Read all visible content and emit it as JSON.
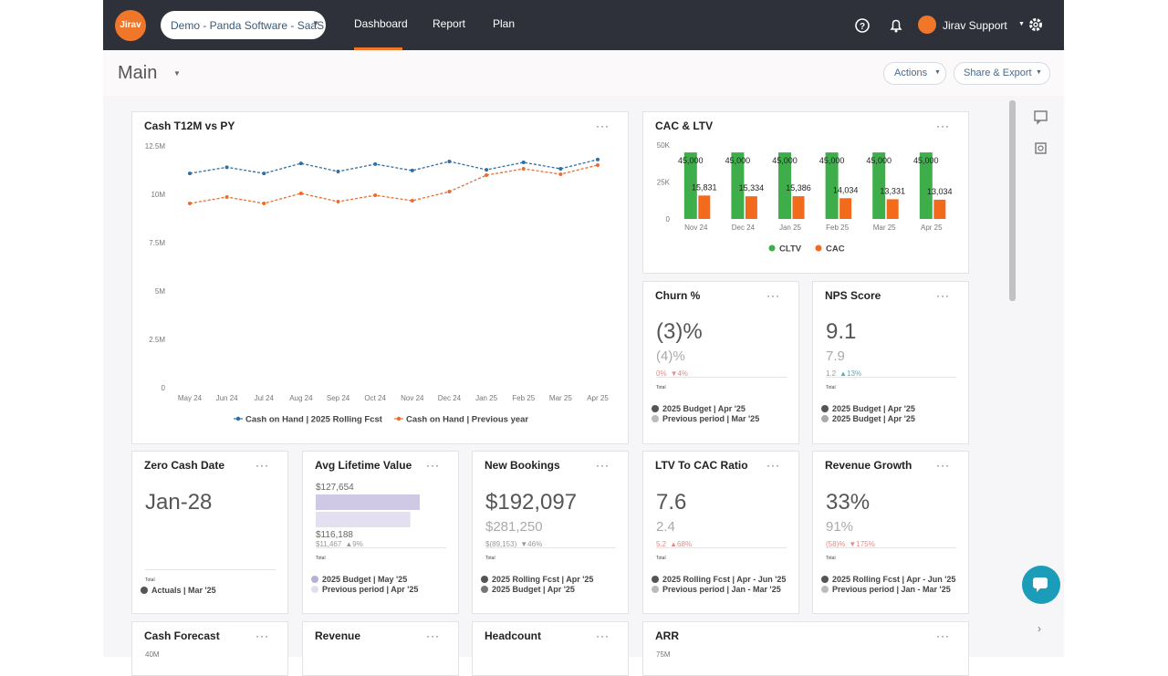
{
  "nav": {
    "logo": "Jirav",
    "workspace": "Demo - Panda Software - SaaS",
    "tabs": [
      "Dashboard",
      "Report",
      "Plan"
    ],
    "user": "Jirav Support"
  },
  "header": {
    "title": "Main",
    "buttons": [
      "Actions",
      "Share & Export"
    ]
  },
  "cash_chart": {
    "type": "line",
    "title": "Cash T12M vs PY",
    "categories": [
      "May 24",
      "Jun 24",
      "Jul 24",
      "Aug 24",
      "Sep 24",
      "Oct 24",
      "Nov 24",
      "Dec 24",
      "Jan 25",
      "Feb 25",
      "Mar 25",
      "Apr 25"
    ],
    "series": [
      {
        "name": "Cash on Hand | 2025 Rolling Fcst",
        "color": "#2f6ea5",
        "values": [
          11080000,
          11400000,
          11080000,
          11600000,
          11180000,
          11560000,
          11230000,
          11700000,
          11270000,
          11650000,
          11320000,
          11800000
        ]
      },
      {
        "name": "Cash on Hand | Previous year",
        "color": "#ef6b2c",
        "values": [
          9530000,
          9860000,
          9530000,
          10050000,
          9620000,
          9950000,
          9670000,
          10140000,
          10990000,
          11320000,
          11040000,
          11510000
        ]
      }
    ],
    "ylim": [
      0,
      12500000
    ],
    "yticks": [
      0,
      {
        "value": 2500000,
        "label": "2.5M"
      },
      {
        "value": 5000000,
        "label": "5M"
      },
      {
        "value": 7500000,
        "label": "7.5M"
      },
      {
        "value": 10000000,
        "label": "10M"
      },
      {
        "value": 12500000,
        "label": "12.5M"
      }
    ],
    "grid": false
  },
  "cac_chart": {
    "type": "bar",
    "title": "CAC & LTV",
    "categories": [
      "Nov 24",
      "Dec 24",
      "Jan 25",
      "Feb 25",
      "Mar 25",
      "Apr 25"
    ],
    "series": [
      {
        "name": "CLTV",
        "color": "#3dae4a",
        "values": [
          45000,
          45000,
          45000,
          45000,
          45000,
          45000
        ],
        "value_labels": [
          "45,000",
          "45,000",
          "45,000",
          "45,000",
          "45,000",
          "45,000"
        ]
      },
      {
        "name": "CAC",
        "color": "#f26b1d",
        "values": [
          15831,
          15334,
          15386,
          14034,
          13331,
          13034
        ],
        "value_labels": [
          "15,831",
          "15,334",
          "15,386",
          "14,034",
          "13,331",
          "13,034"
        ]
      }
    ],
    "ylim": [
      0,
      50000
    ],
    "yticks": [
      0,
      {
        "value": 25000,
        "label": "25K"
      },
      {
        "value": 50000,
        "label": "50K"
      }
    ]
  },
  "cards": [
    {
      "title": "Churn %",
      "value": "(3)%",
      "compare": "(4)%",
      "deltas": [
        "0%",
        "▼4%"
      ],
      "total": "Total",
      "legend": [
        "2025 Budget | Apr '25",
        "Previous period | Mar '25"
      ]
    },
    {
      "title": "NPS Score",
      "value": "9.1",
      "compare": "7.9",
      "deltas": [
        "1.2",
        "▲13%"
      ],
      "total": "Total",
      "legend": [
        "2025 Budget | Apr '25",
        "2025 Budget | Apr '25"
      ]
    },
    {
      "title": "Zero Cash Date",
      "value": "Jan-28",
      "total": "Total",
      "legend": [
        "Actuals | Mar '25"
      ]
    },
    {
      "title": "Avg Lifetime Value",
      "bars": {
        "values": [
          127654,
          116188
        ],
        "value_labels": [
          "$127,654",
          "$116,188"
        ]
      },
      "deltas": [
        "$11,467",
        "▲9%"
      ],
      "total": "Total",
      "legend": [
        "2025 Budget | May '25",
        "Previous period | Apr '25"
      ]
    },
    {
      "title": "New Bookings",
      "value": "$192,097",
      "compare": "$281,250",
      "deltas": [
        "$(89,153)",
        "▼46%"
      ],
      "total": "Total",
      "legend": [
        "2025 Rolling Fcst | Apr '25",
        "2025 Budget | Apr '25"
      ]
    },
    {
      "title": "LTV To CAC Ratio",
      "value": "7.6",
      "compare": "2.4",
      "deltas": [
        "5.2",
        "▲68%"
      ],
      "total": "Total",
      "legend": [
        "2025 Rolling Fcst | Apr - Jun '25",
        "Previous period | Jan - Mar '25"
      ]
    },
    {
      "title": "Revenue Growth",
      "value": "33%",
      "compare": "91%",
      "deltas": [
        "(58)%",
        "▼175%"
      ],
      "total": "Total",
      "legend": [
        "2025 Rolling Fcst | Apr - Jun '25",
        "Previous period | Jan - Mar '25"
      ]
    }
  ],
  "partial_cards": [
    {
      "title": "Cash Forecast",
      "tick": "40M"
    },
    {
      "title": "Revenue"
    },
    {
      "title": "Headcount"
    },
    {
      "title": "ARR",
      "tick": "75M"
    }
  ]
}
